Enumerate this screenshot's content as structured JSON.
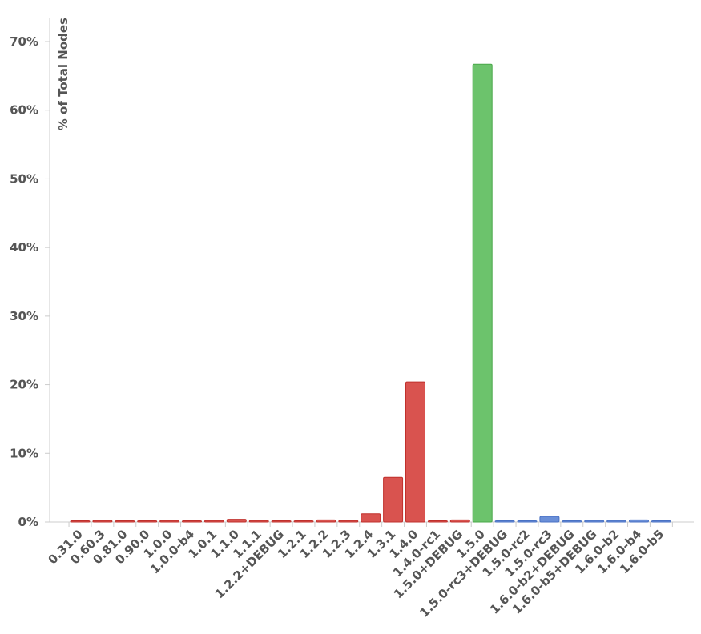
{
  "chart_data": {
    "type": "bar",
    "title": "",
    "xlabel": "",
    "ylabel": "% of Total Nodes",
    "ylim": [
      0,
      70
    ],
    "y_ticks": [
      "0%",
      "10%",
      "20%",
      "30%",
      "40%",
      "50%",
      "60%",
      "70%"
    ],
    "grid": false,
    "categories": [
      "0.31.0",
      "0.60.3",
      "0.81.0",
      "0.90.0",
      "1.0.0",
      "1.0.0-b4",
      "1.0.1",
      "1.1.0",
      "1.1.1",
      "1.2.2+DEBUG",
      "1.2.1",
      "1.2.2",
      "1.2.3",
      "1.2.4",
      "1.3.1",
      "1.4.0",
      "1.4.0-rc1",
      "1.5.0+DEBUG",
      "1.5.0",
      "1.5.0-rc3+DEBUG",
      "1.5.0-rc2",
      "1.5.0-rc3",
      "1.6.0-b2+DEBUG",
      "1.6.0-b5+DEBUG",
      "1.6.0-b2",
      "1.6.0-b4",
      "1.6.0-b5"
    ],
    "values": [
      0.1,
      0.2,
      0.1,
      0.1,
      0.2,
      0.1,
      0.2,
      0.4,
      0.2,
      0.1,
      0.1,
      0.3,
      0.2,
      1.2,
      6.5,
      20.4,
      0.1,
      0.3,
      66.7,
      0.1,
      0.1,
      0.8,
      0.1,
      0.2,
      0.2,
      0.3,
      0.1
    ],
    "colors": [
      "#d9534f",
      "#d9534f",
      "#d9534f",
      "#d9534f",
      "#d9534f",
      "#d9534f",
      "#d9534f",
      "#d9534f",
      "#d9534f",
      "#d9534f",
      "#d9534f",
      "#d9534f",
      "#d9534f",
      "#d9534f",
      "#d9534f",
      "#d9534f",
      "#d9534f",
      "#d9534f",
      "#6cc36c",
      "#6a8fd8",
      "#6a8fd8",
      "#6a8fd8",
      "#6a8fd8",
      "#6a8fd8",
      "#6a8fd8",
      "#6a8fd8",
      "#6a8fd8"
    ],
    "stroke_colors": {
      "#d9534f": "#c0302c",
      "#6cc36c": "#4aa84a",
      "#6a8fd8": "#4a72c4"
    }
  }
}
